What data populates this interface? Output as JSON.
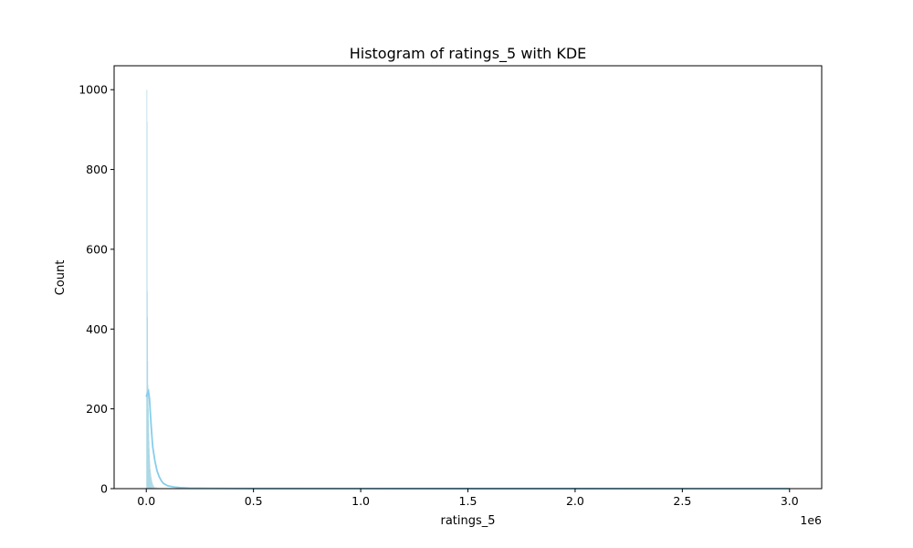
{
  "chart_data": {
    "type": "bar",
    "title": "Histogram of ratings_5 with KDE",
    "xlabel": "ratings_5",
    "ylabel": "Count",
    "x_offset_label": "1e6",
    "xlim": [
      -150000,
      3150000
    ],
    "ylim": [
      0,
      1060
    ],
    "x_ticks": [
      0,
      500000,
      1000000,
      1500000,
      2000000,
      2500000,
      3000000
    ],
    "x_tick_labels": [
      "0.0",
      "0.5",
      "1.0",
      "1.5",
      "2.0",
      "2.5",
      "3.0"
    ],
    "y_ticks": [
      0,
      200,
      400,
      600,
      800,
      1000
    ],
    "y_tick_labels": [
      "0",
      "200",
      "400",
      "600",
      "800",
      "1000"
    ],
    "bin_width": 1000,
    "bins": [
      {
        "x": 0,
        "count": 230
      },
      {
        "x": 1000,
        "count": 1000
      },
      {
        "x": 2000,
        "count": 920
      },
      {
        "x": 3000,
        "count": 495
      },
      {
        "x": 4000,
        "count": 430
      },
      {
        "x": 5000,
        "count": 320
      },
      {
        "x": 6000,
        "count": 260
      },
      {
        "x": 7000,
        "count": 240
      },
      {
        "x": 8000,
        "count": 200
      },
      {
        "x": 9000,
        "count": 170
      },
      {
        "x": 10000,
        "count": 140
      },
      {
        "x": 11000,
        "count": 120
      },
      {
        "x": 12000,
        "count": 100
      },
      {
        "x": 13000,
        "count": 85
      },
      {
        "x": 14000,
        "count": 70
      },
      {
        "x": 15000,
        "count": 60
      },
      {
        "x": 17000,
        "count": 48
      },
      {
        "x": 19000,
        "count": 38
      },
      {
        "x": 21000,
        "count": 30
      },
      {
        "x": 23000,
        "count": 24
      },
      {
        "x": 25000,
        "count": 18
      },
      {
        "x": 28000,
        "count": 13
      },
      {
        "x": 31000,
        "count": 9
      },
      {
        "x": 35000,
        "count": 6
      },
      {
        "x": 40000,
        "count": 4
      },
      {
        "x": 46000,
        "count": 3
      },
      {
        "x": 55000,
        "count": 2
      },
      {
        "x": 70000,
        "count": 1
      }
    ],
    "kde": {
      "x": [
        0,
        5000,
        10000,
        15000,
        20000,
        25000,
        30000,
        40000,
        50000,
        60000,
        70000,
        80000,
        100000,
        130000,
        160000,
        200000,
        300000,
        500000,
        1000000,
        2000000,
        3000000
      ],
      "y": [
        230,
        240,
        245,
        225,
        180,
        140,
        105,
        70,
        45,
        30,
        20,
        13,
        7,
        4,
        2.5,
        1.5,
        0.8,
        0.4,
        0.2,
        0.1,
        0.05
      ]
    },
    "bar_color": "#add8e6",
    "kde_color": "#87ceeb"
  }
}
